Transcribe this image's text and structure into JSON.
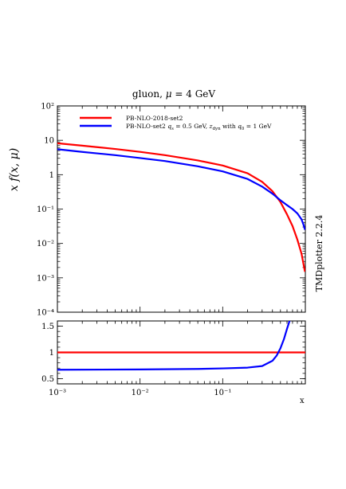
{
  "chart_data": [
    {
      "type": "line",
      "title": "gluon, μ = 4 GeV",
      "ylabel": "x f(x, μ)",
      "xscale": "log",
      "yscale": "log",
      "xlim": [
        0.001,
        1
      ],
      "ylim": [
        0.0001,
        100
      ],
      "x_ticks": [
        "10⁻³",
        "10⁻²",
        "10⁻¹"
      ],
      "y_ticks": [
        "10⁻⁴",
        "10⁻³",
        "10⁻²",
        "10⁻¹",
        "1",
        "10",
        "10²"
      ],
      "legend_position": "top-left",
      "series": [
        {
          "name": "PB-NLO-2018-set2",
          "color": "#ff0000",
          "x": [
            0.001,
            0.002,
            0.005,
            0.01,
            0.02,
            0.05,
            0.1,
            0.2,
            0.3,
            0.4,
            0.5,
            0.6,
            0.7,
            0.8,
            0.9,
            0.95,
            0.99
          ],
          "y": [
            8.2,
            7.0,
            5.6,
            4.6,
            3.7,
            2.6,
            1.85,
            1.1,
            0.62,
            0.33,
            0.16,
            0.07,
            0.032,
            0.013,
            0.005,
            0.0025,
            0.0015
          ]
        },
        {
          "name": "PB-NLO-set2 q_s = 0.5 GeV, z_dyn with q_0 = 1 GeV",
          "color": "#0000ff",
          "x": [
            0.001,
            0.002,
            0.005,
            0.01,
            0.02,
            0.05,
            0.1,
            0.2,
            0.3,
            0.4,
            0.5,
            0.6,
            0.7,
            0.8,
            0.9,
            0.95,
            0.99
          ],
          "y": [
            5.5,
            4.6,
            3.7,
            3.05,
            2.5,
            1.75,
            1.25,
            0.75,
            0.45,
            0.28,
            0.18,
            0.13,
            0.1,
            0.075,
            0.05,
            0.035,
            0.025
          ]
        }
      ]
    },
    {
      "type": "line",
      "xlabel": "x",
      "xscale": "log",
      "xlim": [
        0.001,
        1
      ],
      "ylim": [
        0.4,
        1.6
      ],
      "x_ticks": [
        "10⁻³",
        "10⁻²",
        "10⁻¹"
      ],
      "y_ticks": [
        "0.5",
        "1",
        "1.5"
      ],
      "series": [
        {
          "name": "PB-NLO-2018-set2",
          "color": "#ff0000",
          "x": [
            0.001,
            1
          ],
          "y": [
            1.0,
            1.0
          ]
        },
        {
          "name": "PB-NLO-set2 q_s = 0.5 GeV, z_dyn with q_0 = 1 GeV",
          "color": "#0000ff",
          "x": [
            0.001,
            0.01,
            0.05,
            0.1,
            0.2,
            0.3,
            0.4,
            0.45,
            0.5,
            0.55,
            0.6,
            0.65
          ],
          "y": [
            0.67,
            0.675,
            0.685,
            0.695,
            0.71,
            0.74,
            0.84,
            0.94,
            1.08,
            1.25,
            1.45,
            1.62
          ]
        }
      ]
    }
  ],
  "side_label": "TMDplotter 2.2.4"
}
